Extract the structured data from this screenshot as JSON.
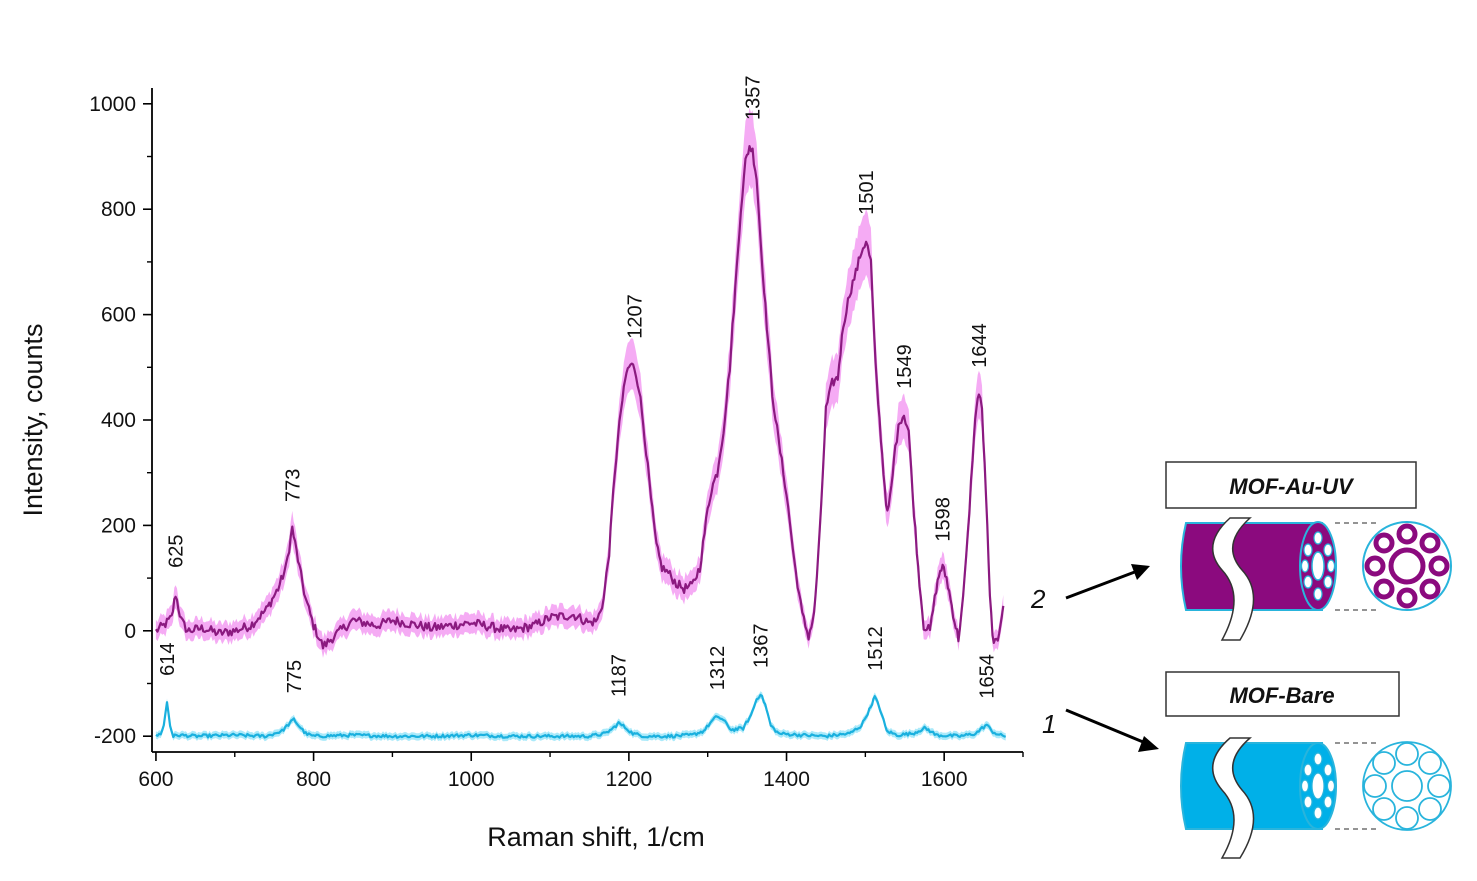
{
  "chart_data": {
    "type": "line",
    "xlabel": "Raman shift, 1/cm",
    "ylabel": "Intensity, counts",
    "xlim": [
      595,
      1700
    ],
    "ylim": [
      -230,
      1030
    ],
    "xticks": [
      600,
      800,
      1000,
      1200,
      1400,
      1600
    ],
    "yticks": [
      -200,
      0,
      200,
      400,
      600,
      800,
      1000
    ],
    "grid": false,
    "series": [
      {
        "name": "MOF-Au-UV",
        "curve_number": "2",
        "color": "#8b1a80",
        "band_color": "#f28ff0",
        "x": [
          600,
          610,
          620,
          625,
          632,
          640,
          660,
          680,
          700,
          720,
          740,
          755,
          765,
          773,
          782,
          790,
          800,
          812,
          830,
          850,
          880,
          900,
          950,
          1000,
          1050,
          1080,
          1100,
          1130,
          1150,
          1160,
          1168,
          1175,
          1182,
          1190,
          1197,
          1202,
          1207,
          1213,
          1220,
          1228,
          1235,
          1242,
          1250,
          1260,
          1270,
          1280,
          1290,
          1300,
          1305,
          1312,
          1320,
          1328,
          1335,
          1342,
          1348,
          1353,
          1357,
          1362,
          1368,
          1375,
          1382,
          1390,
          1400,
          1410,
          1420,
          1428,
          1435,
          1442,
          1450,
          1458,
          1465,
          1472,
          1480,
          1488,
          1495,
          1501,
          1507,
          1513,
          1518,
          1523,
          1528,
          1533,
          1538,
          1544,
          1549,
          1555,
          1560,
          1567,
          1574,
          1582,
          1590,
          1595,
          1598,
          1603,
          1608,
          1613,
          1618,
          1624,
          1630,
          1636,
          1641,
          1644,
          1648,
          1653,
          1658,
          1663,
          1668,
          1675
        ],
        "y": [
          0,
          10,
          25,
          70,
          20,
          0,
          5,
          -5,
          0,
          10,
          40,
          80,
          120,
          195,
          120,
          60,
          10,
          -30,
          -5,
          20,
          10,
          20,
          5,
          15,
          0,
          10,
          25,
          30,
          15,
          20,
          60,
          150,
          300,
          420,
          490,
          505,
          500,
          460,
          370,
          250,
          160,
          120,
          110,
          90,
          80,
          85,
          120,
          230,
          270,
          300,
          380,
          500,
          650,
          800,
          890,
          920,
          910,
          860,
          720,
          580,
          450,
          360,
          260,
          130,
          30,
          -10,
          30,
          180,
          420,
          470,
          480,
          580,
          640,
          680,
          720,
          740,
          700,
          500,
          400,
          300,
          220,
          270,
          350,
          400,
          410,
          380,
          260,
          120,
          10,
          0,
          80,
          115,
          120,
          100,
          60,
          20,
          -15,
          60,
          180,
          330,
          430,
          450,
          420,
          260,
          60,
          -30,
          -15,
          50
        ]
      },
      {
        "name": "MOF-Bare",
        "curve_number": "1",
        "color": "#1ab0de",
        "band_color": "#8fe3f8",
        "x": [
          600,
          606,
          610,
          614,
          618,
          622,
          630,
          650,
          700,
          740,
          760,
          770,
          775,
          780,
          790,
          800,
          850,
          900,
          950,
          1000,
          1050,
          1100,
          1150,
          1170,
          1180,
          1187,
          1195,
          1205,
          1220,
          1250,
          1280,
          1295,
          1305,
          1312,
          1320,
          1330,
          1345,
          1355,
          1362,
          1367,
          1373,
          1380,
          1390,
          1420,
          1450,
          1480,
          1495,
          1505,
          1512,
          1519,
          1527,
          1540,
          1560,
          1575,
          1580,
          1590,
          1620,
          1640,
          1648,
          1654,
          1660,
          1670,
          1678
        ],
        "y": [
          -200,
          -195,
          -180,
          -135,
          -180,
          -200,
          -198,
          -200,
          -198,
          -200,
          -190,
          -175,
          -168,
          -178,
          -195,
          -200,
          -198,
          -200,
          -200,
          -198,
          -200,
          -200,
          -200,
          -195,
          -185,
          -175,
          -183,
          -195,
          -200,
          -200,
          -198,
          -190,
          -172,
          -162,
          -170,
          -188,
          -185,
          -160,
          -130,
          -120,
          -140,
          -180,
          -195,
          -198,
          -200,
          -195,
          -180,
          -150,
          -125,
          -150,
          -190,
          -198,
          -195,
          -185,
          -188,
          -198,
          -200,
          -195,
          -185,
          -178,
          -190,
          -198,
          -200
        ]
      }
    ],
    "peak_labels": [
      {
        "text": "625",
        "x": 625,
        "y": 70,
        "series": 0
      },
      {
        "text": "773",
        "x": 773,
        "y": 195,
        "series": 0
      },
      {
        "text": "1207",
        "x": 1207,
        "y": 505,
        "series": 0
      },
      {
        "text": "1357",
        "x": 1357,
        "y": 920,
        "series": 0
      },
      {
        "text": "1501",
        "x": 1501,
        "y": 740,
        "series": 0
      },
      {
        "text": "1549",
        "x": 1549,
        "y": 410,
        "series": 0
      },
      {
        "text": "1598",
        "x": 1598,
        "y": 120,
        "series": 0
      },
      {
        "text": "1644",
        "x": 1644,
        "y": 450,
        "series": 0
      },
      {
        "text": "614",
        "x": 614,
        "y": -135,
        "series": 1
      },
      {
        "text": "775",
        "x": 775,
        "y": -168,
        "series": 1
      },
      {
        "text": "1187",
        "x": 1187,
        "y": -175,
        "series": 1
      },
      {
        "text": "1312",
        "x": 1312,
        "y": -162,
        "series": 1
      },
      {
        "text": "1367",
        "x": 1367,
        "y": -120,
        "series": 1
      },
      {
        "text": "1512",
        "x": 1512,
        "y": -125,
        "series": 1
      },
      {
        "text": "1654",
        "x": 1654,
        "y": -178,
        "series": 1
      }
    ]
  },
  "legend_boxes": {
    "top": {
      "label": "MOF-Au-UV",
      "fill": "#8b0a7e",
      "outline": "#29b4dc",
      "curve_number": "2"
    },
    "bottom": {
      "label": "MOF-Bare",
      "fill": "#00b0e8",
      "outline": "#29b4dc",
      "curve_number": "1"
    }
  }
}
